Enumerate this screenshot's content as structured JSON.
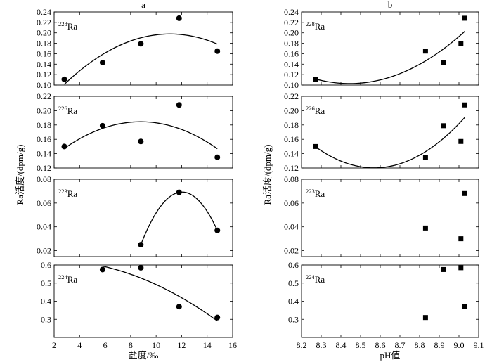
{
  "chart_data": [
    {
      "id": "a",
      "title": "a",
      "type": "scatter",
      "xlabel": "盐度/‰",
      "ylabel": "Ra活度/(dpm/g)",
      "xlim": [
        2,
        16
      ],
      "xticks": [
        "2",
        "4",
        "6",
        "8",
        "10",
        "12",
        "14",
        "16"
      ],
      "marker": "circle",
      "subplots": [
        {
          "isotope_mass": "228",
          "isotope_symbol": "Ra",
          "ylim": [
            0.1,
            0.24
          ],
          "yticks": [
            "0.10",
            "0.12",
            "0.14",
            "0.16",
            "0.18",
            "0.20",
            "0.22",
            "0.24"
          ],
          "x": [
            2.8,
            5.8,
            8.8,
            11.8,
            14.8
          ],
          "y": [
            0.111,
            0.143,
            0.179,
            0.228,
            0.165
          ],
          "fit": {
            "type": "quadratic",
            "x_range": [
              2.8,
              14.8
            ]
          }
        },
        {
          "isotope_mass": "226",
          "isotope_symbol": "Ra",
          "ylim": [
            0.12,
            0.22
          ],
          "yticks": [
            "0.12",
            "0.14",
            "0.16",
            "0.18",
            "0.20",
            "0.22"
          ],
          "x": [
            2.8,
            5.8,
            8.8,
            11.8,
            14.8
          ],
          "y": [
            0.15,
            0.179,
            0.157,
            0.208,
            0.135
          ],
          "fit": {
            "type": "quadratic",
            "x_range": [
              2.8,
              14.8
            ]
          }
        },
        {
          "isotope_mass": "223",
          "isotope_symbol": "Ra",
          "ylim": [
            0.015,
            0.08
          ],
          "yticks": [
            "0.02",
            "0.04",
            "0.06",
            "0.08"
          ],
          "x": [
            8.8,
            11.8,
            14.8
          ],
          "y": [
            0.025,
            0.069,
            0.037
          ],
          "fit": {
            "type": "quadratic",
            "x_range": [
              8.8,
              14.8
            ]
          }
        },
        {
          "isotope_mass": "224",
          "isotope_symbol": "Ra",
          "ylim": [
            0.2,
            0.6
          ],
          "yticks": [
            "0.3",
            "0.4",
            "0.5",
            "0.6"
          ],
          "x": [
            5.8,
            8.8,
            11.8,
            14.8
          ],
          "y": [
            0.575,
            0.585,
            0.37,
            0.31
          ],
          "fit": {
            "type": "quadratic",
            "x_range": [
              5.8,
              14.8
            ]
          }
        }
      ]
    },
    {
      "id": "b",
      "title": "b",
      "type": "scatter",
      "xlabel": "pH值",
      "ylabel": "Ra活度/(dpm/g)",
      "xlim": [
        8.2,
        9.1
      ],
      "xticks": [
        "8.2",
        "8.3",
        "8.4",
        "8.5",
        "8.6",
        "8.7",
        "8.8",
        "8.9",
        "9.0",
        "9.1"
      ],
      "marker": "square",
      "subplots": [
        {
          "isotope_mass": "228",
          "isotope_symbol": "Ra",
          "ylim": [
            0.1,
            0.24
          ],
          "yticks": [
            "0.10",
            "0.12",
            "0.14",
            "0.16",
            "0.18",
            "0.20",
            "0.22",
            "0.24"
          ],
          "x": [
            8.27,
            8.83,
            8.92,
            9.01,
            9.03
          ],
          "y": [
            0.111,
            0.165,
            0.143,
            0.179,
            0.228
          ],
          "fit": {
            "type": "quadratic",
            "x_range": [
              8.27,
              9.03
            ]
          }
        },
        {
          "isotope_mass": "226",
          "isotope_symbol": "Ra",
          "ylim": [
            0.12,
            0.22
          ],
          "yticks": [
            "0.12",
            "0.14",
            "0.16",
            "0.18",
            "0.20",
            "0.22"
          ],
          "x": [
            8.27,
            8.83,
            8.92,
            9.01,
            9.03
          ],
          "y": [
            0.15,
            0.135,
            0.179,
            0.157,
            0.208
          ],
          "fit": {
            "type": "quadratic",
            "x_range": [
              8.27,
              9.03
            ]
          }
        },
        {
          "isotope_mass": "223",
          "isotope_symbol": "Ra",
          "ylim": [
            0.015,
            0.08
          ],
          "yticks": [
            "0.02",
            "0.04",
            "0.06",
            "0.08"
          ],
          "x": [
            8.83,
            9.01,
            9.03
          ],
          "y": [
            0.039,
            0.03,
            0.068
          ],
          "fit": null
        },
        {
          "isotope_mass": "224",
          "isotope_symbol": "Ra",
          "ylim": [
            0.2,
            0.6
          ],
          "yticks": [
            "0.3",
            "0.4",
            "0.5",
            "0.6"
          ],
          "x": [
            8.83,
            8.92,
            9.01,
            9.03
          ],
          "y": [
            0.31,
            0.575,
            0.585,
            0.37
          ],
          "fit": null
        }
      ]
    }
  ]
}
